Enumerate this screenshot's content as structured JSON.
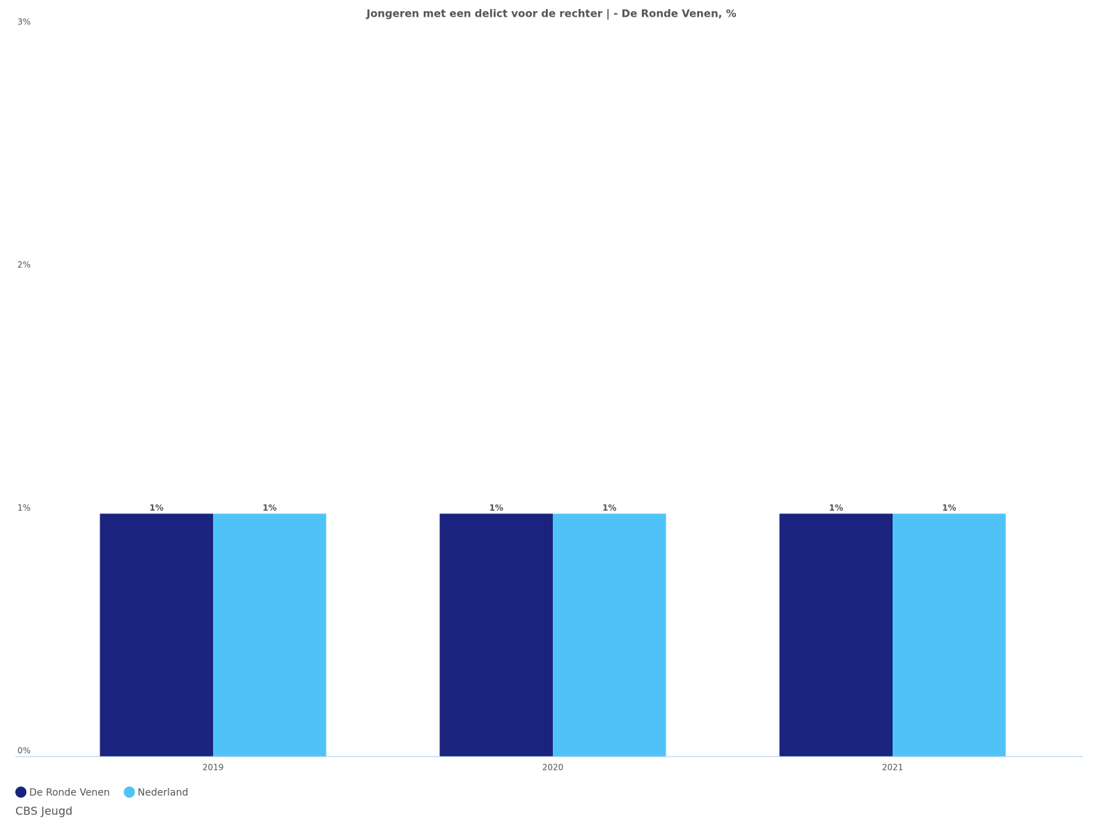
{
  "chart_data": {
    "type": "bar",
    "title": "Jongeren met een delict voor de rechter | - De Ronde Venen, %",
    "categories": [
      "2019",
      "2020",
      "2021"
    ],
    "series": [
      {
        "name": "De Ronde Venen",
        "color": "#1a237e",
        "values": [
          1,
          1,
          1
        ],
        "value_labels": [
          "1%",
          "1%",
          "1%"
        ]
      },
      {
        "name": "Nederland",
        "color": "#4fc3f7",
        "values": [
          1,
          1,
          1
        ],
        "value_labels": [
          "1%",
          "1%",
          "1%"
        ]
      }
    ],
    "ylim": [
      0,
      3
    ],
    "yticks": [
      {
        "value": 0,
        "label": "0%"
      },
      {
        "value": 1,
        "label": "1%"
      },
      {
        "value": 2,
        "label": "2%"
      },
      {
        "value": 3,
        "label": "3%"
      }
    ],
    "grid": false,
    "legend": "bottom-left",
    "credit": "CBS Jeugd"
  }
}
